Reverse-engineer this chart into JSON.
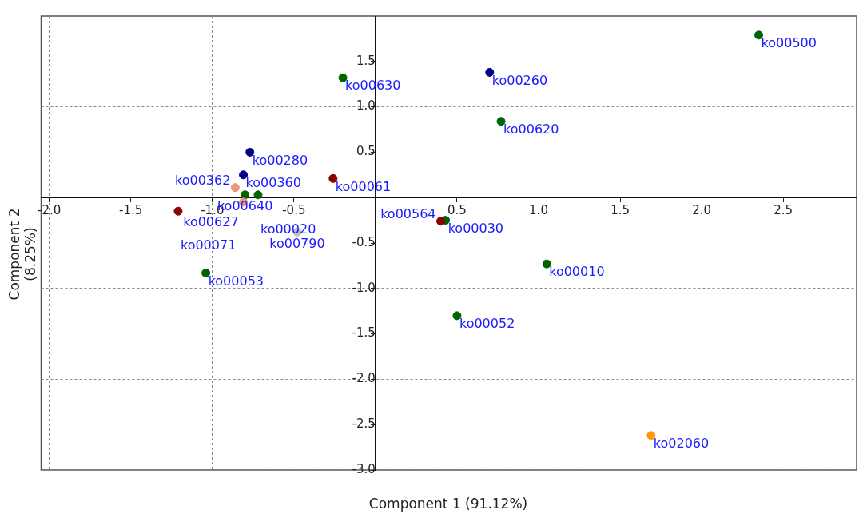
{
  "chart_data": {
    "type": "scatter",
    "xlabel": "Component 1 (91.12%)",
    "ylabel": "Component 2 (8.25%)",
    "xlim": [
      -2.05,
      2.95
    ],
    "ylim": [
      -3.0,
      2.0
    ],
    "xticks": [
      {
        "value": -2,
        "label": "-2.0"
      },
      -1.5,
      {
        "value": -1,
        "label": "-1.0"
      },
      -0.5,
      0.5,
      {
        "value": 1,
        "label": "1.0"
      },
      1.5,
      {
        "value": 2,
        "label": "2.0"
      },
      2.5
    ],
    "yticks": [
      {
        "value": -3,
        "label": "-3.0"
      },
      -2.5,
      {
        "value": -2,
        "label": "-2.0"
      },
      -1.5,
      {
        "value": -1,
        "label": "-1.0"
      },
      -0.5,
      0.5,
      {
        "value": 1,
        "label": "1.0"
      },
      1.5
    ],
    "grid": true,
    "marker": "circle",
    "series": [
      {
        "x": [
          2.35,
          0.7,
          -0.2,
          0.77,
          -0.77,
          -0.81,
          -0.26,
          -0.86,
          -0.72,
          -0.8,
          -0.81,
          -1.21,
          -0.48,
          0.43,
          0.4,
          -1.04,
          1.05,
          0.5,
          1.69
        ],
        "values": [
          1.79,
          1.38,
          1.32,
          0.84,
          0.5,
          0.25,
          0.21,
          0.11,
          0.03,
          0.03,
          -0.05,
          -0.15,
          -0.38,
          -0.25,
          -0.26,
          -0.83,
          -0.73,
          -1.3,
          -2.62
        ],
        "colors": [
          "#006400",
          "#000080",
          "#006400",
          "#006400",
          "#000080",
          "#000080",
          "#8b0000",
          "#e9967a",
          "#006400",
          "#006400",
          "#e9967a",
          "#8b0000",
          "#c0c0c0",
          "#006400",
          "#8b0000",
          "#006400",
          "#006400",
          "#006400",
          "#ff9900"
        ]
      }
    ],
    "annotations": [
      {
        "text": "ko00500",
        "x": 2.35,
        "y": 1.79
      },
      {
        "text": "ko00260",
        "x": 0.7,
        "y": 1.38
      },
      {
        "text": "ko00630",
        "x": -0.2,
        "y": 1.32
      },
      {
        "text": "ko00620",
        "x": 0.77,
        "y": 0.84
      },
      {
        "text": "ko00280",
        "x": -0.77,
        "y": 0.5
      },
      {
        "text": "ko00360",
        "x": -0.81,
        "y": 0.25
      },
      {
        "text": "ko00061",
        "x": -0.26,
        "y": 0.21
      },
      {
        "text": "ko00362",
        "x": -0.86,
        "y": 0.11
      },
      {
        "text": "ko00020",
        "x": -0.72,
        "y": 0.03
      },
      {
        "text": "ko00640",
        "x": -0.8,
        "y": 0.03
      },
      {
        "text": "ko00627",
        "x": -0.81,
        "y": -0.05
      },
      {
        "text": "ko00071",
        "x": -1.21,
        "y": -0.15
      },
      {
        "text": "ko00790",
        "x": -0.48,
        "y": -0.38
      },
      {
        "text": "ko00030",
        "x": 0.43,
        "y": -0.25
      },
      {
        "text": "ko00564",
        "x": 0.4,
        "y": -0.26
      },
      {
        "text": "ko00053",
        "x": -1.04,
        "y": -0.83
      },
      {
        "text": "ko00010",
        "x": 1.05,
        "y": -0.73
      },
      {
        "text": "ko00052",
        "x": 0.5,
        "y": -1.3
      },
      {
        "text": "ko02060",
        "x": 1.69,
        "y": -2.62
      }
    ]
  }
}
